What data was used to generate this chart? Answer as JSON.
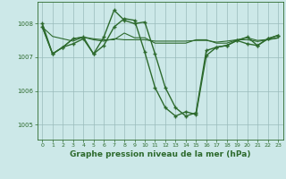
{
  "background_color": "#cce8e8",
  "line_color": "#2d6a2d",
  "grid_color": "#99bbbb",
  "xlabel": "Graphe pression niveau de la mer (hPa)",
  "xlabel_fontsize": 6.5,
  "yticks": [
    1005,
    1006,
    1007,
    1008
  ],
  "xticks": [
    0,
    1,
    2,
    3,
    4,
    5,
    6,
    7,
    8,
    9,
    10,
    11,
    12,
    13,
    14,
    15,
    16,
    17,
    18,
    19,
    20,
    21,
    22,
    23
  ],
  "xlim": [
    -0.5,
    23.5
  ],
  "ylim": [
    1004.55,
    1008.65
  ],
  "series": [
    {
      "y": [
        1008.0,
        1007.1,
        1007.3,
        1007.4,
        1007.55,
        1007.1,
        1007.35,
        1007.9,
        1008.15,
        1008.1,
        1007.15,
        1006.1,
        1005.5,
        1005.25,
        1005.38,
        1005.3,
        1007.05,
        1007.3,
        1007.35,
        1007.5,
        1007.6,
        1007.35,
        1007.55,
        1007.65
      ],
      "lw": 1.0,
      "marker": "+",
      "ms": 3.5,
      "mew": 1.0
    },
    {
      "y": [
        1007.9,
        1007.62,
        1007.55,
        1007.48,
        1007.6,
        1007.52,
        1007.48,
        1007.55,
        1007.52,
        1007.52,
        1007.52,
        1007.48,
        1007.48,
        1007.48,
        1007.48,
        1007.5,
        1007.5,
        1007.45,
        1007.48,
        1007.52,
        1007.58,
        1007.5,
        1007.53,
        1007.58
      ],
      "lw": 0.8,
      "marker": null,
      "ms": 0,
      "mew": 0
    },
    {
      "y": [
        1007.9,
        1007.1,
        1007.3,
        1007.55,
        1007.6,
        1007.55,
        1007.52,
        1007.52,
        1007.72,
        1007.58,
        1007.58,
        1007.42,
        1007.42,
        1007.42,
        1007.42,
        1007.52,
        1007.52,
        1007.42,
        1007.42,
        1007.52,
        1007.52,
        1007.47,
        1007.52,
        1007.57
      ],
      "lw": 0.8,
      "marker": null,
      "ms": 0,
      "mew": 0
    },
    {
      "y": [
        1007.9,
        1007.1,
        1007.3,
        1007.55,
        1007.6,
        1007.1,
        1007.6,
        1008.4,
        1008.1,
        1008.0,
        1008.05,
        1007.1,
        1006.1,
        1005.5,
        1005.25,
        1005.35,
        1007.2,
        1007.3,
        1007.35,
        1007.5,
        1007.4,
        1007.35,
        1007.55,
        1007.65
      ],
      "lw": 1.0,
      "marker": "+",
      "ms": 3.5,
      "mew": 1.0
    }
  ]
}
